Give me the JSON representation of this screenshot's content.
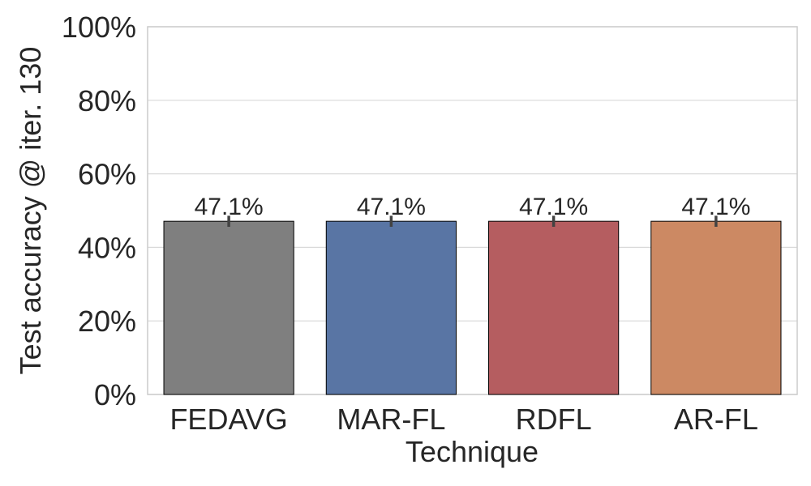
{
  "chart_data": {
    "type": "bar",
    "title": "",
    "xlabel": "Technique",
    "ylabel": "Test accuracy @ iter. 130",
    "categories": [
      "FEDAVG",
      "MAR-FL",
      "RDFL",
      "AR-FL"
    ],
    "values": [
      47.1,
      47.1,
      47.1,
      47.1
    ],
    "error_low": [
      45.6,
      45.6,
      45.6,
      45.6
    ],
    "error_high": [
      48.6,
      48.6,
      48.6,
      48.6
    ],
    "data_labels": [
      "47.1%",
      "47.1%",
      "47.1%",
      "47.1%"
    ],
    "colors": [
      "#7f7f7f",
      "#5975a4",
      "#b55d60",
      "#cc8963"
    ],
    "ylim": [
      0,
      100
    ],
    "yticks": [
      0,
      20,
      40,
      60,
      80,
      100
    ],
    "ytick_labels": [
      "0%",
      "20%",
      "40%",
      "60%",
      "80%",
      "100%"
    ],
    "grid": "horizontal",
    "legend": "none"
  }
}
